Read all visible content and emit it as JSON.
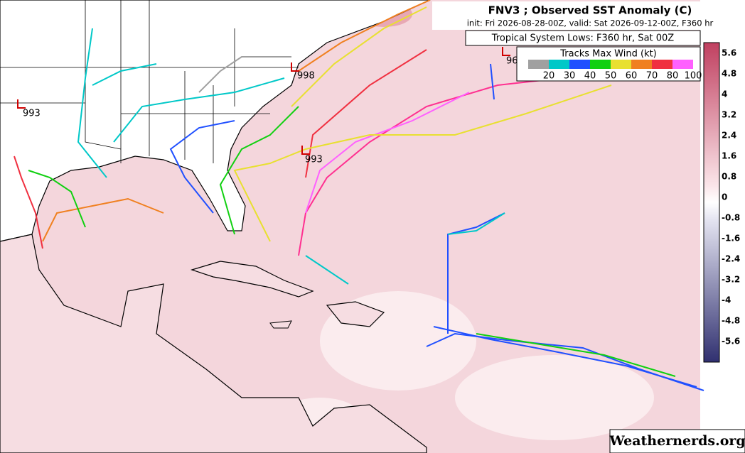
{
  "header": {
    "title": "FNV3 ; Observed SST Anomaly (C)",
    "subtitle": "init: Fri 2026-08-28-00Z, valid: Sat 2026-09-12-00Z, F360 hr"
  },
  "lows_box": {
    "title": "Tropical System Lows: F360 hr, Sat 00Z"
  },
  "tracks_legend": {
    "title": "Tracks Max Wind (kt)",
    "items": [
      {
        "label": "20",
        "color": "#a0a0a0"
      },
      {
        "label": "30",
        "color": "#00c8c8"
      },
      {
        "label": "40",
        "color": "#2050ff"
      },
      {
        "label": "50",
        "color": "#10d010"
      },
      {
        "label": "60",
        "color": "#e8e030"
      },
      {
        "label": "70",
        "color": "#f08020"
      },
      {
        "label": "80",
        "color": "#f03040"
      },
      {
        "label": "100",
        "color": "#ff60ff"
      }
    ]
  },
  "lows": [
    {
      "label": "993"
    },
    {
      "label": "998"
    },
    {
      "label": "993"
    },
    {
      "label": "96"
    }
  ],
  "colorbar": {
    "labels": [
      "5.6",
      "4.8",
      "4",
      "3.2",
      "2.4",
      "1.6",
      "0.8",
      "0",
      "-0.8",
      "-1.6",
      "-2.4",
      "-3.2",
      "-4",
      "-4.8",
      "-5.6"
    ]
  },
  "watermark": "Weathernerds.org"
}
